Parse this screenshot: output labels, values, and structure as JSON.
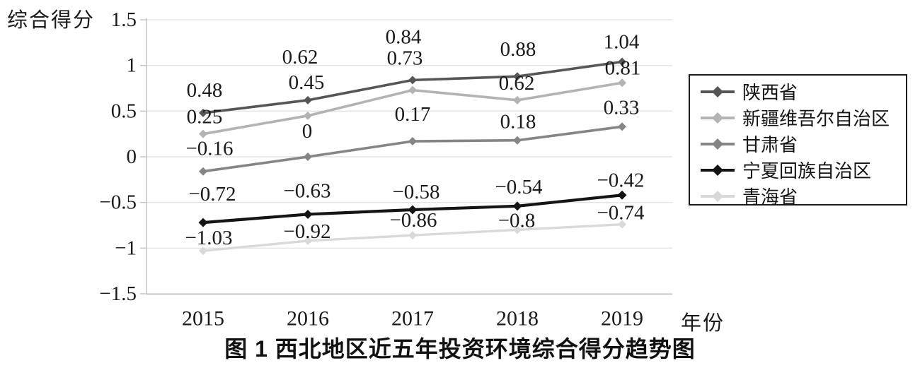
{
  "chart_data": {
    "type": "line",
    "title_caption": "图 1  西北地区近五年投资环境综合得分趋势图",
    "ylabel": "综合得分",
    "xlabel": "年份",
    "x": [
      "2015",
      "2016",
      "2017",
      "2018",
      "2019"
    ],
    "ylim": [
      -1.5,
      1.5
    ],
    "yticks": [
      1.5,
      1,
      0.5,
      0,
      -0.5,
      -1,
      -1.5
    ],
    "ytick_labels": [
      "1.5",
      "1",
      "0.5",
      "0",
      "−0.5",
      "−1",
      "−1.5"
    ],
    "grid": true,
    "legend_position": "right",
    "marker": "diamond",
    "colors": {
      "grid": "#e3e3e3",
      "axis": "#c6c6c6",
      "label_text": "#1a1a1a"
    },
    "series": [
      {
        "name": "陕西省",
        "color": "#565656",
        "values": [
          0.48,
          0.62,
          0.84,
          0.88,
          1.04
        ],
        "labels": [
          "0.48",
          "0.62",
          "0.84",
          "0.88",
          "1.04"
        ]
      },
      {
        "name": "新疆维吾尔自治区",
        "color": "#b3b3b3",
        "values": [
          0.25,
          0.45,
          0.73,
          0.62,
          0.81
        ],
        "labels": [
          "0.25",
          "0.45",
          "0.73",
          "0.62",
          "0.81"
        ]
      },
      {
        "name": "甘肃省",
        "color": "#858585",
        "values": [
          -0.16,
          0,
          0.17,
          0.18,
          0.33
        ],
        "labels": [
          "−0.16",
          "0",
          "0.17",
          "0.18",
          "0.33"
        ]
      },
      {
        "name": "宁夏回族自治区",
        "color": "#141414",
        "values": [
          -0.72,
          -0.63,
          -0.58,
          -0.54,
          -0.42
        ],
        "labels": [
          "−0.72",
          "−0.63",
          "−0.58",
          "−0.54",
          "−0.42"
        ]
      },
      {
        "name": "青海省",
        "color": "#d9d9d9",
        "values": [
          -1.03,
          -0.92,
          -0.86,
          -0.8,
          -0.74
        ],
        "labels": [
          "−1.03",
          "−0.92",
          "−0.86",
          "−0.8",
          "−0.74"
        ]
      }
    ]
  }
}
